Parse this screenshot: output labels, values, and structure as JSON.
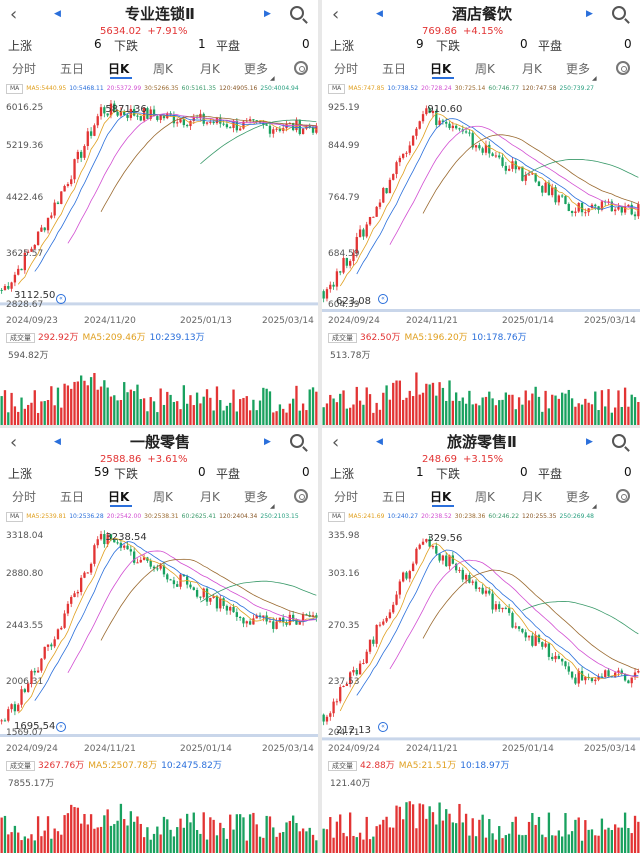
{
  "panels": [
    {
      "name": "专业连锁Ⅱ",
      "price": "5634.02",
      "change": "+7.91%",
      "stats": {
        "up_label": "上涨",
        "up": "6",
        "down_label": "下跌",
        "down": "1",
        "flat_label": "平盘",
        "flat": "0"
      },
      "tabs": [
        "分时",
        "五日",
        "日K",
        "周K",
        "月K",
        "更多"
      ],
      "ma_btn": "MA",
      "ma": [
        "MA5:5440.95",
        "10:5468.11",
        "20:5372.99",
        "30:5266.35",
        "60:5161.35",
        "120:4905.16",
        "250:4004.94"
      ],
      "y_ticks": [
        "6016.25",
        "5219.36",
        "4422.46",
        "3625.57",
        "2828.67"
      ],
      "peak": "5871.36",
      "low": "3112.50",
      "dates": [
        "2024/09/23",
        "2024/11/20",
        "2025/01/13",
        "2025/03/14"
      ],
      "vol_btn": "成交量",
      "vol": [
        "292.92万",
        "MA5:209.46万",
        "10:239.13万"
      ],
      "vol_max": "594.82万",
      "chart_data": {
        "type": "candlestick",
        "y_range": [
          2828.67,
          6016.25
        ],
        "start": 3200,
        "high": 5871.36,
        "low": 3112.5,
        "close": 5634.02
      }
    },
    {
      "name": "酒店餐饮",
      "price": "769.86",
      "change": "+4.15%",
      "stats": {
        "up_label": "上涨",
        "up": "9",
        "down_label": "下跌",
        "down": "0",
        "flat_label": "平盘",
        "flat": "0"
      },
      "tabs": [
        "分时",
        "五日",
        "日K",
        "周K",
        "月K",
        "更多"
      ],
      "ma_btn": "MA",
      "ma": [
        "MA5:747.85",
        "10:738.52",
        "20:728.24",
        "30:725.14",
        "60:746.77",
        "120:747.58",
        "250:739.27"
      ],
      "y_ticks": [
        "925.19",
        "844.99",
        "764.79",
        "684.59",
        "604.39"
      ],
      "peak": "910.60",
      "low": "623.08",
      "dates": [
        "2024/09/24",
        "2024/11/21",
        "2025/01/14",
        "2025/03/14"
      ],
      "vol_btn": "成交量",
      "vol": [
        "362.50万",
        "MA5:196.20万",
        "10:178.76万"
      ],
      "vol_max": "513.78万",
      "chart_data": {
        "type": "candlestick",
        "y_range": [
          604.39,
          925.19
        ],
        "start": 640,
        "high": 910.6,
        "low": 623.08,
        "close": 769.86
      }
    },
    {
      "name": "一般零售",
      "price": "2588.86",
      "change": "+3.61%",
      "stats": {
        "up_label": "上涨",
        "up": "59",
        "down_label": "下跌",
        "down": "0",
        "flat_label": "平盘",
        "flat": "0"
      },
      "tabs": [
        "分时",
        "五日",
        "日K",
        "周K",
        "月K",
        "更多"
      ],
      "ma_btn": "MA",
      "ma": [
        "MA5:2539.81",
        "10:2536.28",
        "20:2542.00",
        "30:2538.31",
        "60:2625.41",
        "120:2404.34",
        "250:2103.15"
      ],
      "y_ticks": [
        "3318.04",
        "2880.80",
        "2443.55",
        "2006.31",
        "1569.07"
      ],
      "peak": "3238.54",
      "low": "1695.54",
      "dates": [
        "2024/09/24",
        "2024/11/21",
        "2025/01/14",
        "2025/03/14"
      ],
      "vol_btn": "成交量",
      "vol": [
        "3267.76万",
        "MA5:2507.78万",
        "10:2475.82万"
      ],
      "vol_max": "7855.17万",
      "chart_data": {
        "type": "candlestick",
        "y_range": [
          1569.07,
          3318.04
        ],
        "start": 1750,
        "high": 3238.54,
        "low": 1695.54,
        "close": 2588.86
      }
    },
    {
      "name": "旅游零售Ⅱ",
      "price": "248.69",
      "change": "+3.15%",
      "stats": {
        "up_label": "上涨",
        "up": "1",
        "down_label": "下跌",
        "down": "0",
        "flat_label": "平盘",
        "flat": "0"
      },
      "tabs": [
        "分时",
        "五日",
        "日K",
        "周K",
        "月K",
        "更多"
      ],
      "ma_btn": "MA",
      "ma": [
        "MA5:241.69",
        "10:240.27",
        "20:238.52",
        "30:238.36",
        "60:246.22",
        "120:255.35",
        "250:269.48"
      ],
      "y_ticks": [
        "335.98",
        "303.16",
        "270.35",
        "237.53",
        "204.71"
      ],
      "peak": "329.56",
      "low": "212.13",
      "dates": [
        "2024/09/24",
        "2024/11/21",
        "2025/01/14",
        "2025/03/14"
      ],
      "vol_btn": "成交量",
      "vol": [
        "42.88万",
        "MA5:21.51万",
        "10:18.97万"
      ],
      "vol_max": "121.40万",
      "chart_data": {
        "type": "candlestick",
        "y_range": [
          204.71,
          335.98
        ],
        "start": 222,
        "high": 329.56,
        "low": 212.13,
        "close": 248.69
      }
    }
  ],
  "colors": {
    "up": "#e23434",
    "down": "#19a15f",
    "accent": "#2a6fdb"
  }
}
